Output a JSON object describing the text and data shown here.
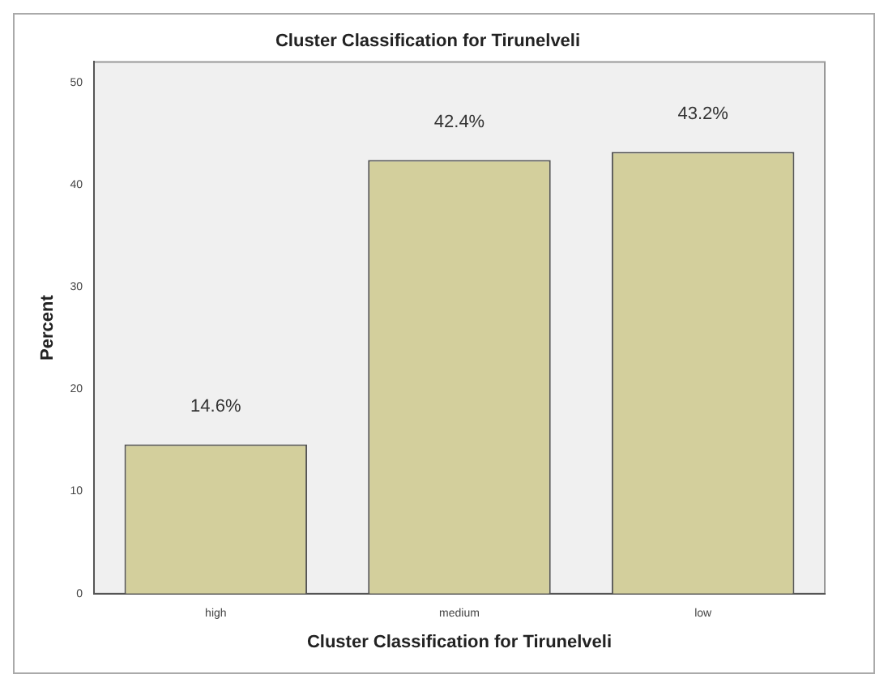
{
  "chart_data": {
    "type": "bar",
    "title": "Cluster Classification for Tirunelveli",
    "xlabel": "Cluster Classification for Tirunelveli",
    "ylabel": "Percent",
    "categories": [
      "high",
      "medium",
      "low"
    ],
    "values": [
      14.6,
      42.4,
      43.2
    ],
    "value_labels": [
      "14.6%",
      "42.4%",
      "43.2%"
    ],
    "color": "#d3cf9c",
    "ylim": [
      0,
      52
    ],
    "yticks": [
      0,
      10,
      20,
      30,
      40,
      50
    ],
    "grid": false,
    "legend": false
  }
}
